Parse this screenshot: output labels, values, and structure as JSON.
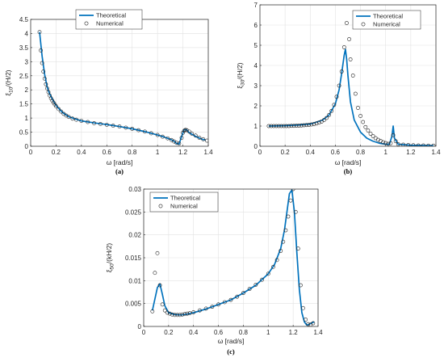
{
  "chart_data": [
    {
      "type": "line",
      "panel": "a",
      "caption": "(a)",
      "xlabel": "ω  [rad/s]",
      "ylabel": "ξ10/(H/2)",
      "xlim": [
        0,
        1.4
      ],
      "ylim": [
        0,
        4.5
      ],
      "xticks": [
        "0",
        "0.2",
        "0.4",
        "0.6",
        "0.8",
        "1",
        "1.2",
        "1.4"
      ],
      "yticks": [
        "0",
        "0.5",
        "1",
        "1.5",
        "2",
        "2.5",
        "3",
        "3.5",
        "4",
        "4.5"
      ],
      "grid": true,
      "legend_position": "top-center",
      "series": [
        {
          "name": "Theoretical",
          "style": "line",
          "color": "#0072BD",
          "x": [
            0.07,
            0.09,
            0.11,
            0.13,
            0.15,
            0.18,
            0.2,
            0.25,
            0.3,
            0.35,
            0.4,
            0.5,
            0.6,
            0.7,
            0.8,
            0.9,
            1.0,
            1.05,
            1.1,
            1.13,
            1.15,
            1.17,
            1.19,
            1.21,
            1.23,
            1.25,
            1.3,
            1.35,
            1.38
          ],
          "y": [
            4.05,
            3.2,
            2.55,
            2.1,
            1.85,
            1.6,
            1.45,
            1.2,
            1.05,
            0.97,
            0.9,
            0.83,
            0.77,
            0.7,
            0.62,
            0.52,
            0.4,
            0.33,
            0.25,
            0.18,
            0.1,
            0.08,
            0.35,
            0.6,
            0.58,
            0.48,
            0.35,
            0.25,
            0.22
          ]
        },
        {
          "name": "Numerical",
          "style": "markers",
          "color": "#262626",
          "x": [
            0.07,
            0.08,
            0.09,
            0.1,
            0.11,
            0.12,
            0.13,
            0.14,
            0.15,
            0.16,
            0.17,
            0.18,
            0.19,
            0.2,
            0.22,
            0.24,
            0.26,
            0.28,
            0.3,
            0.33,
            0.36,
            0.4,
            0.45,
            0.5,
            0.55,
            0.6,
            0.65,
            0.7,
            0.75,
            0.8,
            0.85,
            0.9,
            0.95,
            1.0,
            1.04,
            1.08,
            1.11,
            1.13,
            1.15,
            1.17,
            1.19,
            1.2,
            1.21,
            1.22,
            1.23,
            1.25,
            1.27,
            1.3,
            1.33,
            1.36,
            1.39
          ],
          "y": [
            4.05,
            3.4,
            2.95,
            2.65,
            2.4,
            2.2,
            2.05,
            1.92,
            1.8,
            1.7,
            1.62,
            1.55,
            1.48,
            1.42,
            1.32,
            1.23,
            1.15,
            1.09,
            1.04,
            0.98,
            0.94,
            0.9,
            0.86,
            0.82,
            0.79,
            0.76,
            0.73,
            0.7,
            0.66,
            0.62,
            0.57,
            0.52,
            0.46,
            0.4,
            0.34,
            0.28,
            0.22,
            0.17,
            0.12,
            0.1,
            0.3,
            0.48,
            0.55,
            0.58,
            0.57,
            0.52,
            0.45,
            0.38,
            0.3,
            0.25,
            0.2
          ]
        }
      ]
    },
    {
      "type": "line",
      "panel": "b",
      "caption": "(b)",
      "xlabel": "ω  [rad/s]",
      "ylabel": "ξ30/(H/2)",
      "xlim": [
        0,
        1.4
      ],
      "ylim": [
        0,
        7
      ],
      "xticks": [
        "0",
        "0.2",
        "0.4",
        "0.6",
        "0.8",
        "1",
        "1.2",
        "1.4"
      ],
      "yticks": [
        "0",
        "1",
        "2",
        "3",
        "4",
        "5",
        "6",
        "7"
      ],
      "grid": true,
      "legend_position": "top-right",
      "series": [
        {
          "name": "Theoretical",
          "style": "line",
          "color": "#0072BD",
          "x": [
            0.07,
            0.2,
            0.3,
            0.4,
            0.5,
            0.55,
            0.6,
            0.63,
            0.65,
            0.67,
            0.68,
            0.69,
            0.7,
            0.72,
            0.75,
            0.8,
            0.85,
            0.9,
            0.95,
            1.0,
            1.03,
            1.05,
            1.06,
            1.07,
            1.1,
            1.2,
            1.3,
            1.38
          ],
          "y": [
            1.0,
            1.02,
            1.05,
            1.1,
            1.3,
            1.55,
            2.1,
            2.8,
            3.6,
            4.5,
            4.8,
            4.3,
            3.5,
            2.2,
            1.3,
            0.7,
            0.4,
            0.25,
            0.15,
            0.1,
            0.1,
            0.5,
            1.0,
            0.4,
            0.1,
            0.05,
            0.04,
            0.03
          ]
        },
        {
          "name": "Numerical",
          "style": "markers",
          "color": "#262626",
          "x": [
            0.07,
            0.09,
            0.11,
            0.13,
            0.15,
            0.17,
            0.19,
            0.21,
            0.23,
            0.25,
            0.27,
            0.29,
            0.31,
            0.33,
            0.35,
            0.37,
            0.39,
            0.41,
            0.43,
            0.45,
            0.47,
            0.49,
            0.51,
            0.53,
            0.55,
            0.57,
            0.59,
            0.61,
            0.63,
            0.65,
            0.67,
            0.69,
            0.71,
            0.72,
            0.74,
            0.76,
            0.78,
            0.8,
            0.82,
            0.84,
            0.86,
            0.88,
            0.9,
            0.92,
            0.94,
            0.96,
            0.98,
            1.0,
            1.02,
            1.04,
            1.06,
            1.08,
            1.1,
            1.14,
            1.18,
            1.22,
            1.26,
            1.3,
            1.34,
            1.38
          ],
          "y": [
            1.0,
            1.0,
            1.0,
            1.0,
            1.0,
            1.0,
            1.0,
            1.0,
            1.0,
            1.01,
            1.01,
            1.02,
            1.02,
            1.03,
            1.04,
            1.05,
            1.06,
            1.08,
            1.1,
            1.13,
            1.17,
            1.22,
            1.3,
            1.4,
            1.55,
            1.75,
            2.05,
            2.45,
            3.0,
            3.7,
            4.9,
            6.1,
            5.3,
            4.3,
            3.5,
            2.6,
            1.9,
            1.5,
            1.2,
            0.95,
            0.78,
            0.62,
            0.5,
            0.4,
            0.32,
            0.26,
            0.2,
            0.16,
            0.12,
            0.15,
            0.55,
            0.25,
            0.1,
            0.08,
            0.06,
            0.05,
            0.04,
            0.04,
            0.03,
            0.03
          ]
        }
      ]
    },
    {
      "type": "line",
      "panel": "c",
      "caption": "(c)",
      "xlabel": "ω  [rad/s]",
      "ylabel": "ξ50/(kH/2)",
      "xlim": [
        0,
        1.4
      ],
      "ylim": [
        0,
        0.03
      ],
      "xticks": [
        "0",
        "0.2",
        "0.4",
        "0.6",
        "0.8",
        "1",
        "1.2",
        "1.4"
      ],
      "yticks": [
        "0",
        "0.005",
        "0.01",
        "0.015",
        "0.02",
        "0.025",
        "0.03"
      ],
      "grid": true,
      "legend_position": "top-left",
      "series": [
        {
          "name": "Theoretical",
          "style": "line",
          "color": "#0072BD",
          "x": [
            0.07,
            0.09,
            0.11,
            0.13,
            0.15,
            0.17,
            0.2,
            0.25,
            0.3,
            0.35,
            0.4,
            0.5,
            0.6,
            0.7,
            0.8,
            0.9,
            1.0,
            1.05,
            1.1,
            1.13,
            1.15,
            1.17,
            1.19,
            1.21,
            1.23,
            1.25,
            1.27,
            1.29,
            1.31,
            1.33,
            1.35,
            1.37
          ],
          "y": [
            0.0035,
            0.006,
            0.0085,
            0.0093,
            0.007,
            0.0045,
            0.003,
            0.0026,
            0.0025,
            0.0027,
            0.003,
            0.0038,
            0.0048,
            0.0058,
            0.0073,
            0.009,
            0.0115,
            0.0135,
            0.017,
            0.021,
            0.025,
            0.029,
            0.0298,
            0.025,
            0.016,
            0.008,
            0.003,
            0.001,
            0.0003,
            0.0005,
            0.0008,
            0.001
          ]
        },
        {
          "name": "Numerical",
          "style": "markers",
          "color": "#262626",
          "x": [
            0.07,
            0.09,
            0.11,
            0.13,
            0.15,
            0.17,
            0.19,
            0.21,
            0.23,
            0.25,
            0.27,
            0.29,
            0.31,
            0.33,
            0.35,
            0.37,
            0.4,
            0.45,
            0.5,
            0.55,
            0.6,
            0.65,
            0.7,
            0.75,
            0.8,
            0.85,
            0.9,
            0.95,
            1.0,
            1.04,
            1.07,
            1.1,
            1.12,
            1.14,
            1.16,
            1.18,
            1.2,
            1.22,
            1.24,
            1.26,
            1.28,
            1.3,
            1.32,
            1.34,
            1.36
          ],
          "y": [
            0.0033,
            0.0117,
            0.016,
            0.009,
            0.0048,
            0.0035,
            0.003,
            0.0028,
            0.0026,
            0.0025,
            0.0025,
            0.0025,
            0.0026,
            0.0027,
            0.0028,
            0.0029,
            0.0031,
            0.0035,
            0.0039,
            0.0043,
            0.0048,
            0.0053,
            0.0058,
            0.0065,
            0.0073,
            0.0082,
            0.0091,
            0.0102,
            0.0115,
            0.013,
            0.0145,
            0.0165,
            0.0185,
            0.021,
            0.024,
            0.0275,
            0.03,
            0.025,
            0.017,
            0.009,
            0.004,
            0.0015,
            0.0005,
            0.0004,
            0.0007
          ]
        }
      ]
    }
  ]
}
